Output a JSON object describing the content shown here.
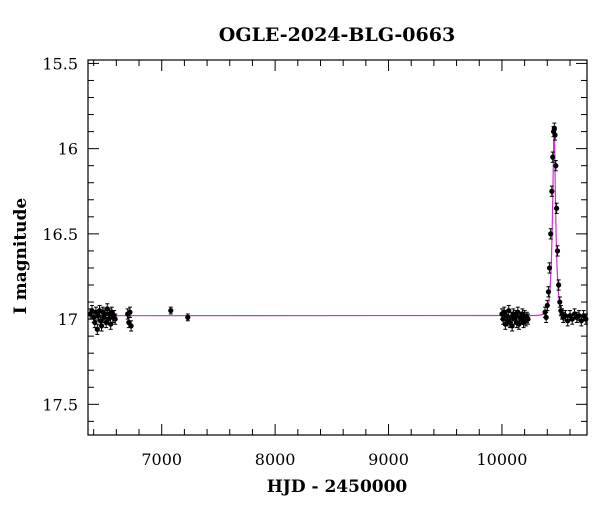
{
  "chart_data": {
    "type": "scatter",
    "title": "OGLE-2024-BLG-0663",
    "xlabel": "HJD - 2450000",
    "ylabel": "I magnitude",
    "xlim": [
      6350,
      10750
    ],
    "ylim": [
      17.68,
      15.48
    ],
    "y_inverted": true,
    "grid": false,
    "legend": "none",
    "x_major_ticks": [
      7000,
      8000,
      9000,
      10000
    ],
    "x_tick_labels": [
      "7000",
      "8000",
      "9000",
      "10000"
    ],
    "y_major_ticks": [
      15.5,
      16,
      16.5,
      17,
      17.5
    ],
    "y_tick_labels": [
      "15.5",
      "16",
      "16.5",
      "17",
      "17.5"
    ],
    "baseline_mag": 16.98,
    "series": [
      {
        "kind": "observations",
        "color": "#000000",
        "points": [
          [
            6370,
            16.97,
            0.03
          ],
          [
            6385,
            16.95,
            0.03
          ],
          [
            6400,
            16.99,
            0.03
          ],
          [
            6410,
            17.02,
            0.03
          ],
          [
            6420,
            16.96,
            0.03
          ],
          [
            6432,
            17.06,
            0.03
          ],
          [
            6440,
            16.98,
            0.03
          ],
          [
            6452,
            16.95,
            0.03
          ],
          [
            6460,
            17.01,
            0.03
          ],
          [
            6470,
            17.04,
            0.03
          ],
          [
            6480,
            16.96,
            0.03
          ],
          [
            6490,
            16.99,
            0.03
          ],
          [
            6500,
            16.97,
            0.03
          ],
          [
            6510,
            17.02,
            0.03
          ],
          [
            6520,
            16.94,
            0.03
          ],
          [
            6530,
            17.0,
            0.03
          ],
          [
            6540,
            16.97,
            0.03
          ],
          [
            6550,
            17.03,
            0.03
          ],
          [
            6560,
            16.96,
            0.03
          ],
          [
            6570,
            16.99,
            0.03
          ],
          [
            6580,
            16.98,
            0.03
          ],
          [
            6590,
            17.0,
            0.03
          ],
          [
            6700,
            16.97,
            0.03
          ],
          [
            6710,
            17.02,
            0.03
          ],
          [
            6720,
            16.96,
            0.03
          ],
          [
            6730,
            17.04,
            0.03
          ],
          [
            7080,
            16.95,
            0.02
          ],
          [
            7230,
            16.99,
            0.02
          ],
          [
            10000,
            16.97,
            0.03
          ],
          [
            10010,
            17.0,
            0.03
          ],
          [
            10020,
            16.96,
            0.03
          ],
          [
            10030,
            17.03,
            0.03
          ],
          [
            10040,
            16.98,
            0.03
          ],
          [
            10050,
            17.01,
            0.03
          ],
          [
            10060,
            16.95,
            0.03
          ],
          [
            10070,
            17.02,
            0.03
          ],
          [
            10080,
            16.99,
            0.03
          ],
          [
            10090,
            17.04,
            0.03
          ],
          [
            10100,
            16.97,
            0.03
          ],
          [
            10110,
            17.0,
            0.03
          ],
          [
            10120,
            16.98,
            0.03
          ],
          [
            10130,
            17.02,
            0.03
          ],
          [
            10140,
            16.96,
            0.03
          ],
          [
            10150,
            17.03,
            0.03
          ],
          [
            10160,
            16.99,
            0.03
          ],
          [
            10170,
            17.0,
            0.03
          ],
          [
            10180,
            16.97,
            0.03
          ],
          [
            10190,
            17.02,
            0.03
          ],
          [
            10200,
            16.98,
            0.03
          ],
          [
            10210,
            17.01,
            0.03
          ],
          [
            10220,
            16.99,
            0.03
          ],
          [
            10230,
            17.0,
            0.03
          ],
          [
            10380,
            16.96,
            0.03
          ],
          [
            10390,
            16.99,
            0.03
          ],
          [
            10400,
            16.92,
            0.03
          ],
          [
            10410,
            16.84,
            0.03
          ],
          [
            10420,
            16.7,
            0.03
          ],
          [
            10430,
            16.5,
            0.03
          ],
          [
            10440,
            16.25,
            0.03
          ],
          [
            10448,
            16.05,
            0.03
          ],
          [
            10455,
            15.9,
            0.03
          ],
          [
            10462,
            15.88,
            0.03
          ],
          [
            10468,
            15.92,
            0.03
          ],
          [
            10475,
            16.1,
            0.03
          ],
          [
            10482,
            16.35,
            0.03
          ],
          [
            10490,
            16.6,
            0.03
          ],
          [
            10500,
            16.8,
            0.03
          ],
          [
            10510,
            16.9,
            0.03
          ],
          [
            10520,
            16.95,
            0.03
          ],
          [
            10530,
            16.97,
            0.03
          ],
          [
            10540,
            16.99,
            0.03
          ],
          [
            10560,
            16.98,
            0.03
          ],
          [
            10580,
            17.01,
            0.03
          ],
          [
            10600,
            16.98,
            0.03
          ],
          [
            10620,
            17.0,
            0.03
          ],
          [
            10640,
            16.97,
            0.03
          ],
          [
            10660,
            16.99,
            0.03
          ],
          [
            10680,
            16.98,
            0.03
          ],
          [
            10700,
            17.01,
            0.03
          ],
          [
            10720,
            16.98,
            0.03
          ],
          [
            10740,
            17.0,
            0.03
          ]
        ]
      },
      {
        "kind": "model",
        "color": "#cc33cc",
        "peak_time": 10460,
        "peak_mag": 15.88,
        "time_scale": 26,
        "curve_x": [
          6350,
          10300,
          10340,
          10360,
          10380,
          10395,
          10405,
          10415,
          10425,
          10435,
          10443,
          10450,
          10456,
          10460,
          10464,
          10470,
          10477,
          10485,
          10495,
          10505,
          10515,
          10530,
          10545,
          10560,
          10580,
          10620,
          10750
        ]
      }
    ]
  }
}
